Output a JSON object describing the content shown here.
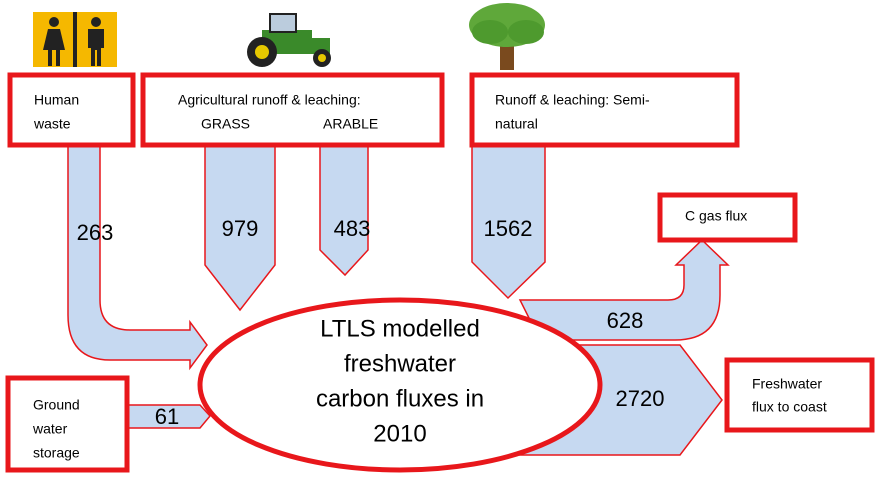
{
  "nodes": [
    {
      "lines": [
        "Human",
        "waste"
      ]
    },
    {
      "lines": [
        "Agricultural runoff & leaching:",
        "GRASS",
        "ARABLE"
      ]
    },
    {
      "lines": [
        "Runoff & leaching: Semi-",
        "natural"
      ]
    },
    {
      "lines": [
        "C gas flux"
      ]
    },
    {
      "lines": [
        "Ground",
        "water",
        "storage"
      ]
    },
    {
      "lines": [
        "Freshwater",
        "flux to coast"
      ]
    },
    {
      "lines": [
        "LTLS modelled",
        "freshwater",
        "carbon fluxes in",
        "2010"
      ]
    }
  ],
  "flows": [
    {
      "value": 263
    },
    {
      "value": 979
    },
    {
      "value": 483
    },
    {
      "value": 1562
    },
    {
      "value": 628
    },
    {
      "value": 2720
    },
    {
      "value": 61
    }
  ]
}
